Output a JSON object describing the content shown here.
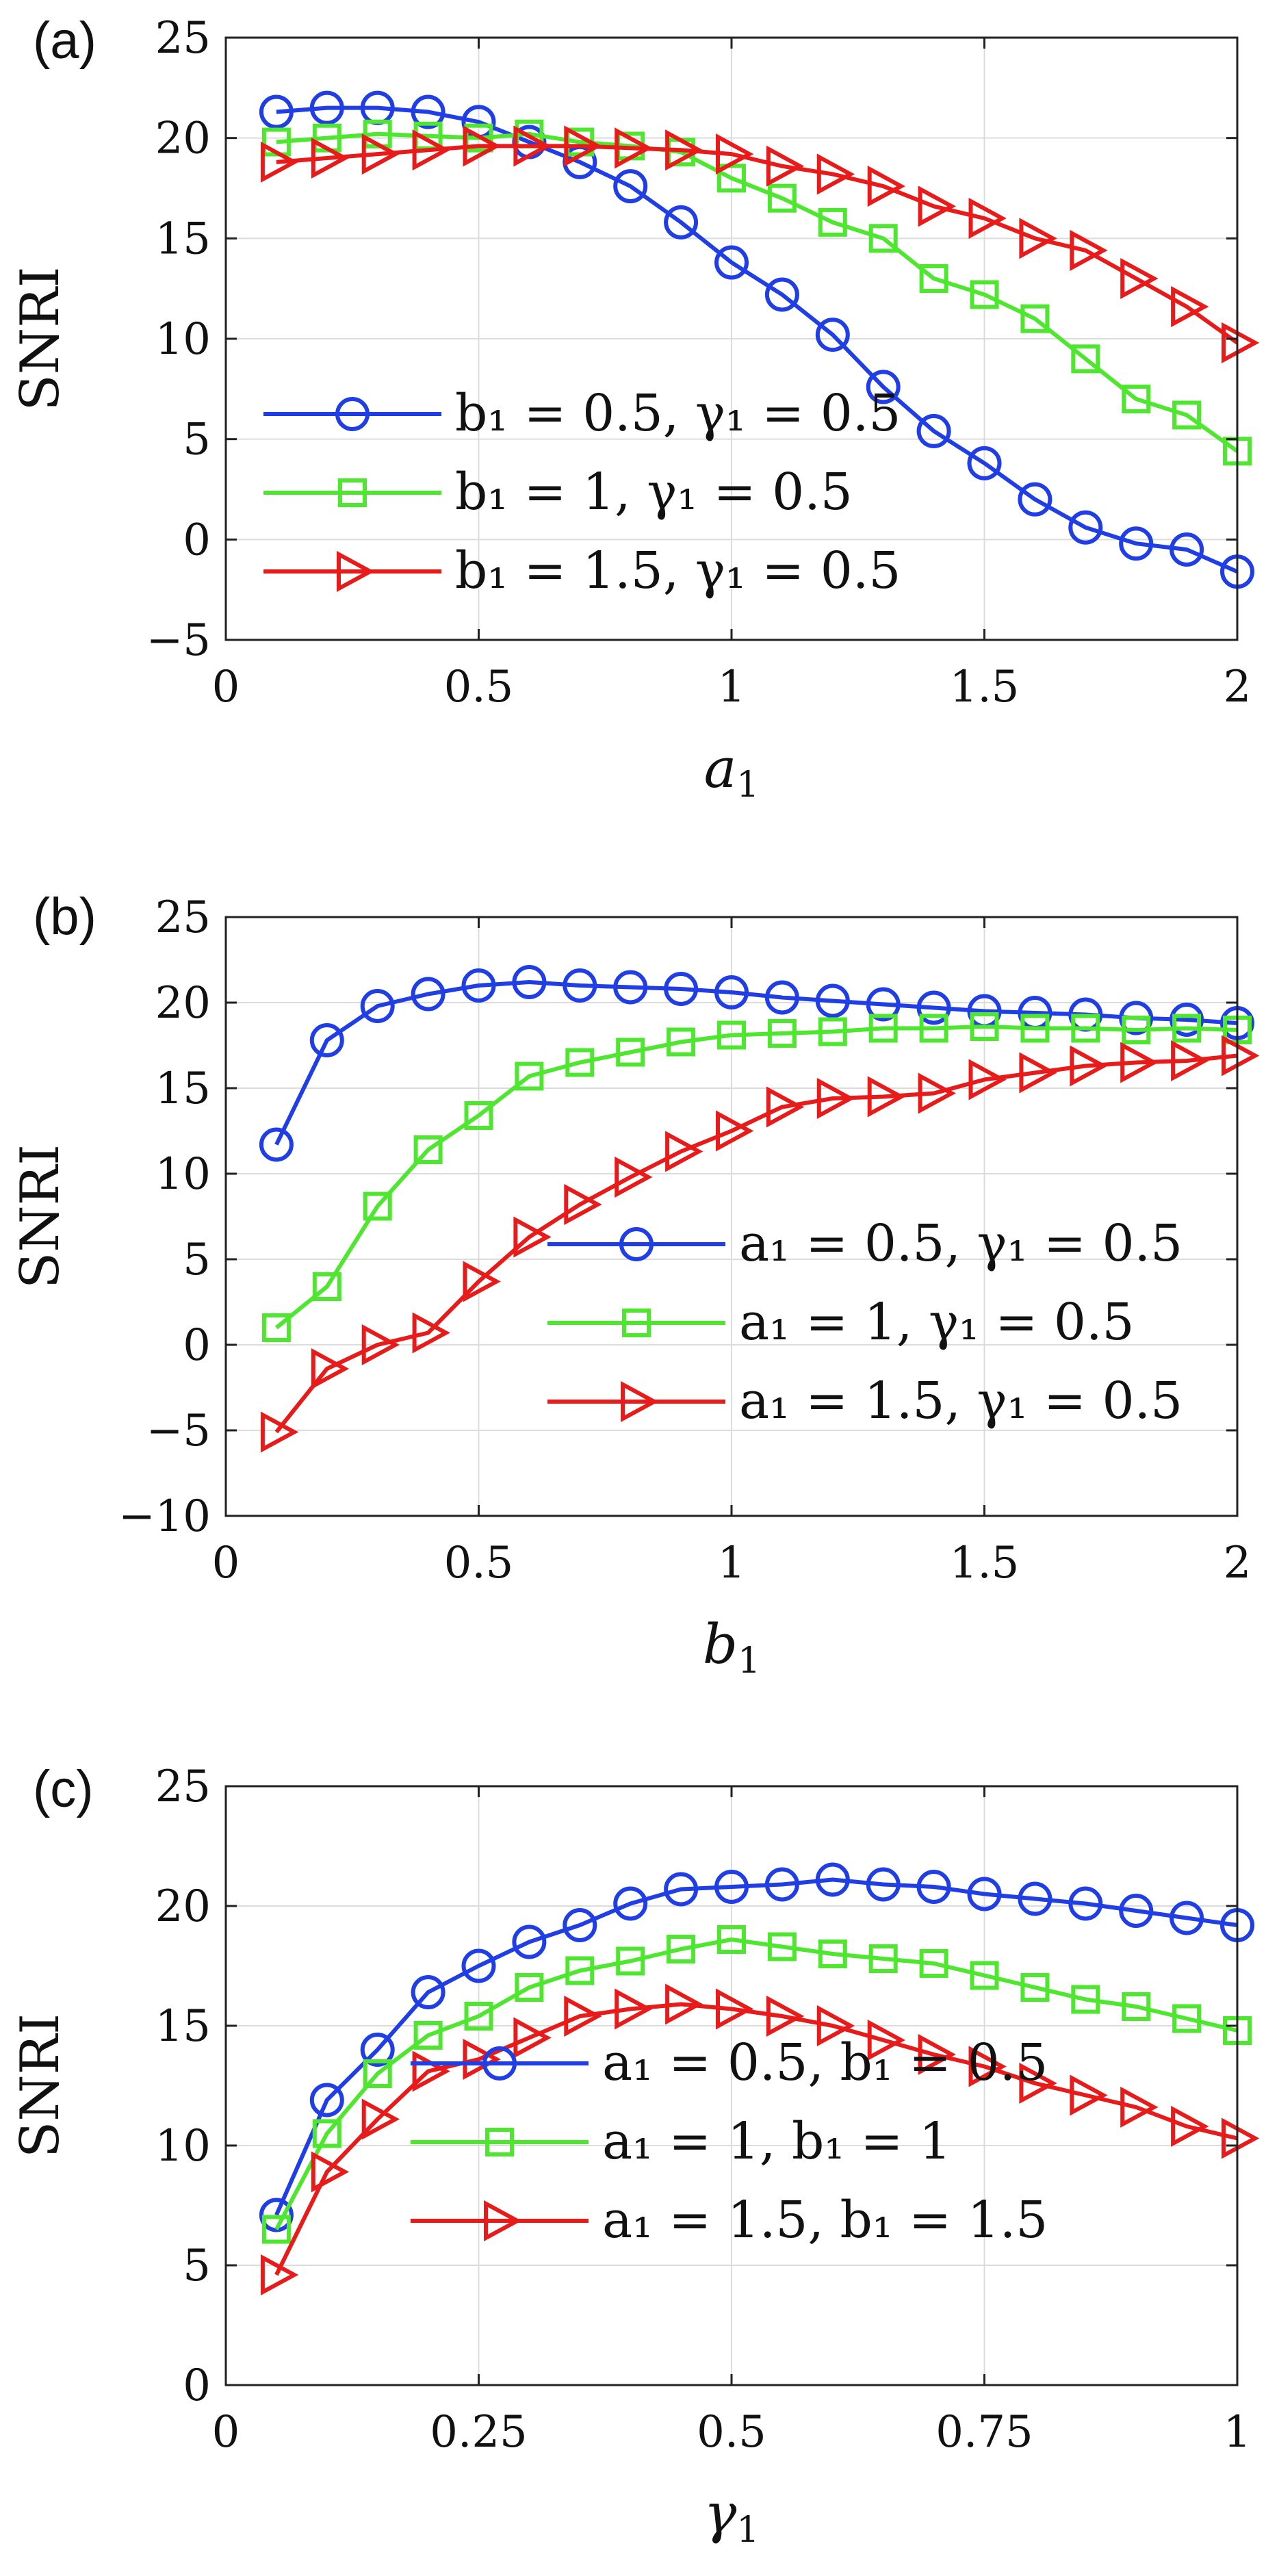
{
  "chart_data": [
    {
      "type": "line",
      "panel_label": "(a)",
      "xlabel": "a",
      "xlabel_sub": "1",
      "ylabel": "SNRI",
      "xlim": [
        0,
        2
      ],
      "ylim": [
        -5,
        25
      ],
      "xticks": [
        0,
        0.5,
        1,
        1.5,
        2
      ],
      "xtick_labels": [
        "0",
        "0.5",
        "1",
        "1.5",
        "2"
      ],
      "yticks": [
        -5,
        0,
        5,
        10,
        15,
        20,
        25
      ],
      "ytick_labels": [
        "−5",
        "0",
        "5",
        "10",
        "15",
        "20",
        "25"
      ],
      "grid": true,
      "legend_position": "lower-left",
      "x": [
        0.1,
        0.2,
        0.3,
        0.4,
        0.5,
        0.6,
        0.7,
        0.8,
        0.9,
        1.0,
        1.1,
        1.2,
        1.3,
        1.4,
        1.5,
        1.6,
        1.7,
        1.8,
        1.9,
        2.0
      ],
      "series": [
        {
          "name": "b1 = 0.5, γ1 = 0.5",
          "legend": "b₁ = 0.5, γ₁ = 0.5",
          "color": "#1f3ee6",
          "marker": "circle",
          "values": [
            21.3,
            21.5,
            21.5,
            21.3,
            20.8,
            19.8,
            18.8,
            17.6,
            15.8,
            13.8,
            12.2,
            10.2,
            7.6,
            5.4,
            3.8,
            2.0,
            0.6,
            -0.2,
            -0.5,
            -1.6
          ]
        },
        {
          "name": "b1 = 1, γ1 = 0.5",
          "legend": "b₁ = 1, γ₁ = 0.5",
          "color": "#4ee62e",
          "marker": "square",
          "values": [
            19.8,
            20.0,
            20.2,
            20.1,
            20.0,
            20.2,
            19.8,
            19.6,
            19.3,
            18.0,
            17.0,
            15.8,
            15.0,
            13.0,
            12.2,
            11.0,
            9.0,
            7.0,
            6.2,
            4.4
          ]
        },
        {
          "name": "b1 = 1.5, γ1 = 0.5",
          "legend": "b₁ = 1.5, γ₁ = 0.5",
          "color": "#e81a1a",
          "marker": "triangle-right",
          "values": [
            18.8,
            19.0,
            19.2,
            19.4,
            19.6,
            19.6,
            19.6,
            19.5,
            19.4,
            19.2,
            18.6,
            18.2,
            17.6,
            16.6,
            16.0,
            15.0,
            14.4,
            13.0,
            11.6,
            9.8
          ]
        }
      ]
    },
    {
      "type": "line",
      "panel_label": "(b)",
      "xlabel": "b",
      "xlabel_sub": "1",
      "ylabel": "SNRI",
      "xlim": [
        0,
        2
      ],
      "ylim": [
        -10,
        25
      ],
      "xticks": [
        0,
        0.5,
        1,
        1.5,
        2
      ],
      "xtick_labels": [
        "0",
        "0.5",
        "1",
        "1.5",
        "2"
      ],
      "yticks": [
        -10,
        -5,
        0,
        5,
        10,
        15,
        20,
        25
      ],
      "ytick_labels": [
        "−10",
        "−5",
        "0",
        "5",
        "10",
        "15",
        "20",
        "25"
      ],
      "grid": true,
      "legend_position": "lower-right",
      "x": [
        0.1,
        0.2,
        0.3,
        0.4,
        0.5,
        0.6,
        0.7,
        0.8,
        0.9,
        1.0,
        1.1,
        1.2,
        1.3,
        1.4,
        1.5,
        1.6,
        1.7,
        1.8,
        1.9,
        2.0
      ],
      "series": [
        {
          "name": "a1 = 0.5, γ1 = 0.5",
          "legend": "a₁ = 0.5, γ₁ = 0.5",
          "color": "#1f3ee6",
          "marker": "circle",
          "values": [
            11.7,
            17.8,
            19.8,
            20.5,
            21.0,
            21.2,
            21.0,
            20.9,
            20.8,
            20.6,
            20.3,
            20.1,
            19.9,
            19.7,
            19.5,
            19.4,
            19.3,
            19.1,
            19.0,
            18.8
          ]
        },
        {
          "name": "a1 = 1, γ1 = 0.5",
          "legend": "a₁ = 1, γ₁ = 0.5",
          "color": "#4ee62e",
          "marker": "square",
          "values": [
            1.0,
            3.4,
            8.1,
            11.4,
            13.4,
            15.7,
            16.5,
            17.1,
            17.7,
            18.1,
            18.2,
            18.3,
            18.5,
            18.5,
            18.6,
            18.5,
            18.5,
            18.4,
            18.5,
            18.4
          ]
        },
        {
          "name": "a1 = 1.5, γ1 = 0.5",
          "legend": "a₁ = 1.5, γ₁ = 0.5",
          "color": "#e81a1a",
          "marker": "triangle-right",
          "values": [
            -5.1,
            -1.4,
            0.0,
            0.7,
            3.7,
            6.3,
            8.2,
            9.8,
            11.3,
            12.5,
            13.9,
            14.4,
            14.5,
            14.7,
            15.5,
            15.9,
            16.3,
            16.5,
            16.6,
            16.9
          ]
        }
      ]
    },
    {
      "type": "line",
      "panel_label": "(c)",
      "xlabel": "γ",
      "xlabel_sub": "1",
      "ylabel": "SNRI",
      "xlim": [
        0,
        1
      ],
      "ylim": [
        0,
        25
      ],
      "xticks": [
        0,
        0.25,
        0.5,
        0.75,
        1
      ],
      "xtick_labels": [
        "0",
        "0.25",
        "0.5",
        "0.75",
        "1"
      ],
      "yticks": [
        0,
        5,
        10,
        15,
        20,
        25
      ],
      "ytick_labels": [
        "0",
        "5",
        "10",
        "15",
        "20",
        "25"
      ],
      "grid": true,
      "legend_position": "lower-center",
      "x": [
        0.05,
        0.1,
        0.15,
        0.2,
        0.25,
        0.3,
        0.35,
        0.4,
        0.45,
        0.5,
        0.55,
        0.6,
        0.65,
        0.7,
        0.75,
        0.8,
        0.85,
        0.9,
        0.95,
        1.0
      ],
      "series": [
        {
          "name": "a1 = 0.5, b1 = 0.5",
          "legend": "a₁ = 0.5, b₁ = 0.5",
          "color": "#1f3ee6",
          "marker": "circle",
          "values": [
            7.1,
            11.9,
            14.0,
            16.4,
            17.5,
            18.5,
            19.2,
            20.1,
            20.7,
            20.8,
            20.9,
            21.1,
            20.9,
            20.8,
            20.5,
            20.3,
            20.1,
            19.8,
            19.5,
            19.2
          ]
        },
        {
          "name": "a1 = 1, b1 = 1",
          "legend": "a₁ = 1, b₁ = 1",
          "color": "#4ee62e",
          "marker": "square",
          "values": [
            6.5,
            10.5,
            13.0,
            14.6,
            15.4,
            16.6,
            17.3,
            17.7,
            18.2,
            18.6,
            18.3,
            18.0,
            17.8,
            17.6,
            17.1,
            16.6,
            16.1,
            15.8,
            15.3,
            14.8
          ]
        },
        {
          "name": "a1 = 1.5, b1 = 1.5",
          "legend": "a₁ = 1.5, b₁ = 1.5",
          "color": "#e81a1a",
          "marker": "triangle-right",
          "values": [
            4.6,
            8.9,
            11.1,
            13.1,
            13.6,
            14.5,
            15.4,
            15.7,
            15.9,
            15.7,
            15.4,
            15.0,
            14.4,
            13.8,
            13.3,
            12.6,
            12.1,
            11.6,
            10.8,
            10.3
          ]
        }
      ]
    }
  ]
}
